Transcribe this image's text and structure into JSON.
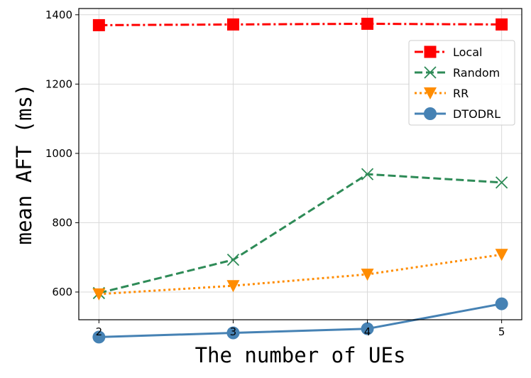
{
  "chart_data": {
    "type": "line",
    "xlabel": "The number of UEs",
    "ylabel": "mean AFT (ms)",
    "x": [
      2,
      3,
      4,
      5
    ],
    "xlim": [
      1.85,
      5.15
    ],
    "ylim": [
      520,
      1418
    ],
    "xticks": [
      "2",
      "3",
      "4",
      "5"
    ],
    "yticks": [
      600,
      800,
      1000,
      1200,
      1400
    ],
    "ytick_labels": [
      "600",
      "800",
      "1000",
      "1200",
      "1400"
    ],
    "grid": true,
    "legend_position": "top-right",
    "series": [
      {
        "name": "Local",
        "values": [
          1370,
          1372,
          1374,
          1372
        ],
        "color": "#ff0000",
        "dash": "dashdot",
        "marker": "square"
      },
      {
        "name": "Random",
        "values": [
          597,
          693,
          940,
          916
        ],
        "color": "#2e8b57",
        "dash": "dashed",
        "marker": "x"
      },
      {
        "name": "RR",
        "values": [
          594,
          618,
          651,
          708
        ],
        "color": "#ff8c00",
        "dash": "dotted",
        "marker": "triangle-down"
      },
      {
        "name": "DTODRL",
        "values": [
          470,
          482,
          494,
          566
        ],
        "color": "#4682b4",
        "dash": "solid",
        "marker": "circle"
      }
    ]
  }
}
